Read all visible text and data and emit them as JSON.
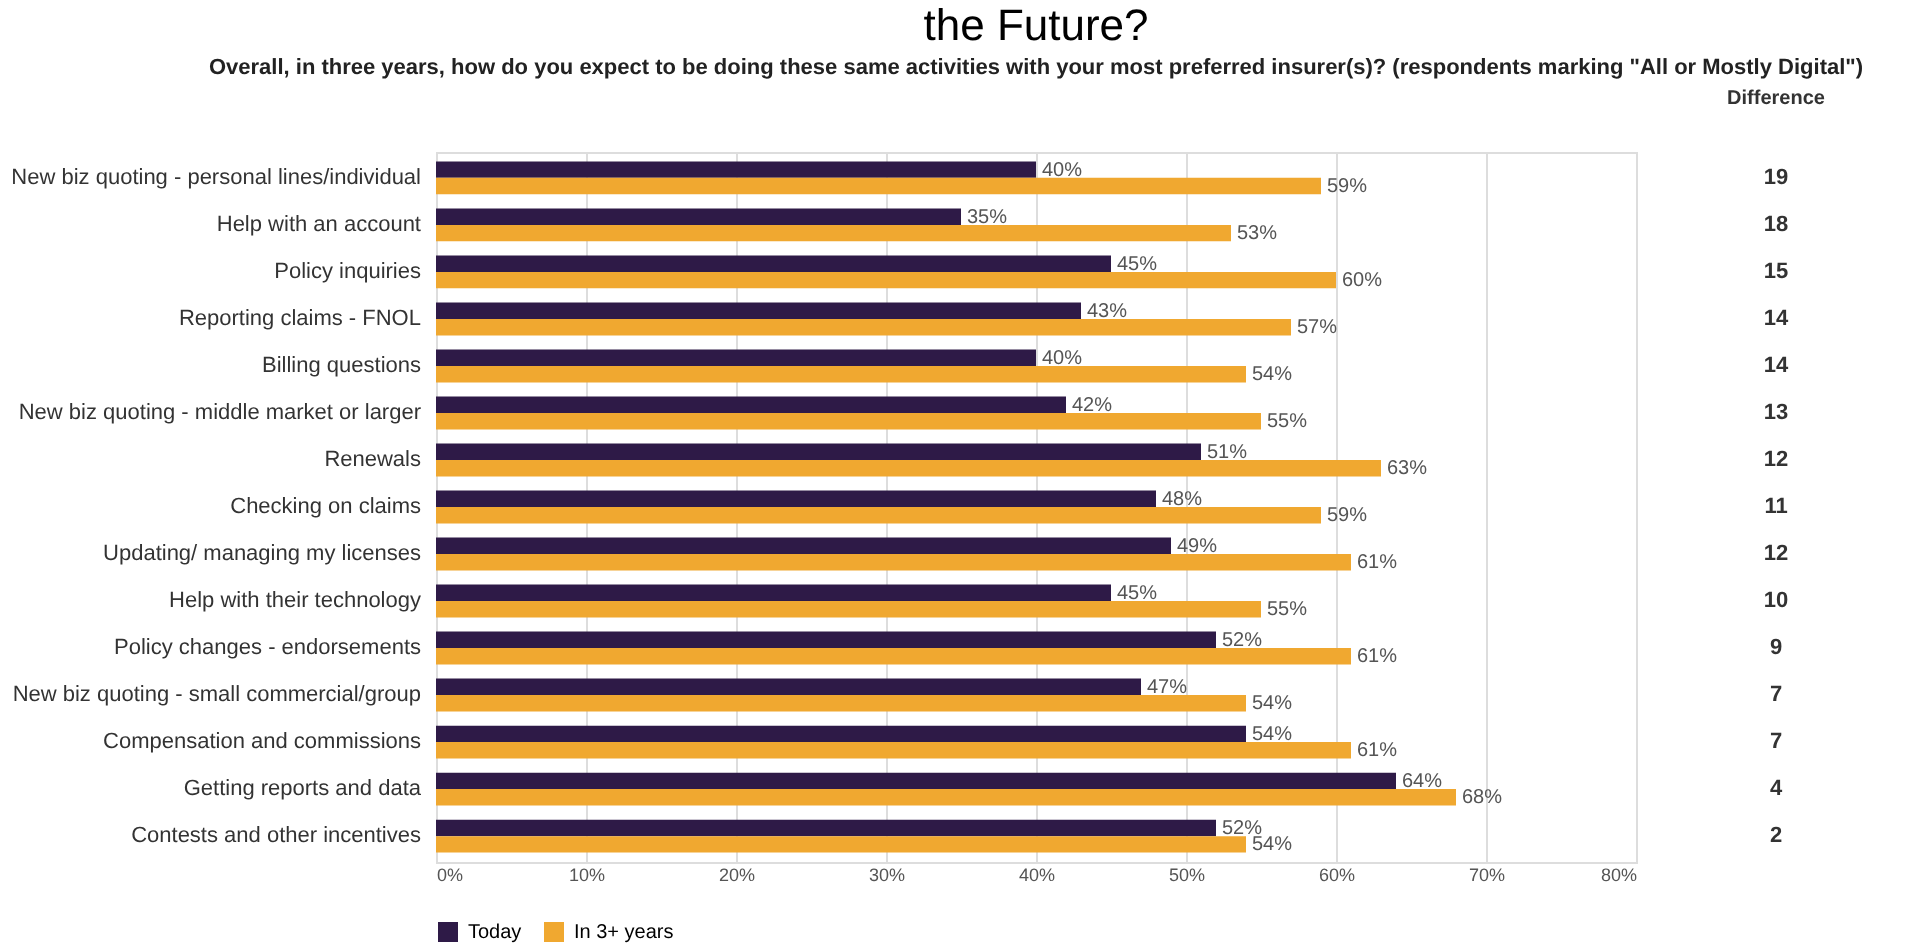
{
  "chart_data": {
    "type": "bar",
    "orientation": "horizontal",
    "title": "the Future?",
    "subtitle": "Overall, in three years, how do you expect to be doing these same activities with your most preferred insurer(s)? (respondents marking \"All or Mostly Digital\")",
    "categories": [
      "New biz quoting - personal lines/individual",
      "Help with an account",
      "Policy inquiries",
      "Reporting claims - FNOL",
      "Billing questions",
      "New biz quoting - middle market or larger",
      "Renewals",
      "Checking on claims",
      "Updating/ managing my licenses",
      "Help with their technology",
      "Policy changes - endorsements",
      "New biz quoting - small commercial/group",
      "Compensation and commissions",
      "Getting reports and data",
      "Contests and other incentives"
    ],
    "series": [
      {
        "name": "Today",
        "color": "#2e1a47",
        "values": [
          40,
          35,
          45,
          43,
          40,
          42,
          51,
          48,
          49,
          45,
          52,
          47,
          54,
          64,
          52
        ],
        "value_labels": [
          "40%",
          "35%",
          "45%",
          "43%",
          "40%",
          "42%",
          "51%",
          "48%",
          "49%",
          "45%",
          "52%",
          "47%",
          "54%",
          "64%",
          "52%"
        ]
      },
      {
        "name": "In 3+ years",
        "color": "#f0a830",
        "values": [
          59,
          53,
          60,
          57,
          54,
          55,
          63,
          59,
          61,
          55,
          61,
          54,
          61,
          68,
          54
        ],
        "value_labels": [
          "59%",
          "53%",
          "60%",
          "57%",
          "54%",
          "55%",
          "63%",
          "59%",
          "61%",
          "55%",
          "61%",
          "54%",
          "61%",
          "68%",
          "54%"
        ]
      }
    ],
    "xlim": [
      0,
      80
    ],
    "xticks": [
      {
        "value": 0,
        "label": "0%"
      },
      {
        "value": 10,
        "label": "10%"
      },
      {
        "value": 20,
        "label": "20%"
      },
      {
        "value": 30,
        "label": "30%"
      },
      {
        "value": 40,
        "label": "40%"
      },
      {
        "value": 50,
        "label": "50%"
      },
      {
        "value": 60,
        "label": "60%"
      },
      {
        "value": 70,
        "label": "70%"
      },
      {
        "value": 80,
        "label": "80%"
      }
    ],
    "grid": "x",
    "legend": "bottom",
    "annotations": [
      "Difference",
      "19",
      "18",
      "15",
      "14",
      "14",
      "13",
      "12",
      "11",
      "12",
      "10",
      "9",
      "7",
      "7",
      "4",
      "2"
    ]
  }
}
